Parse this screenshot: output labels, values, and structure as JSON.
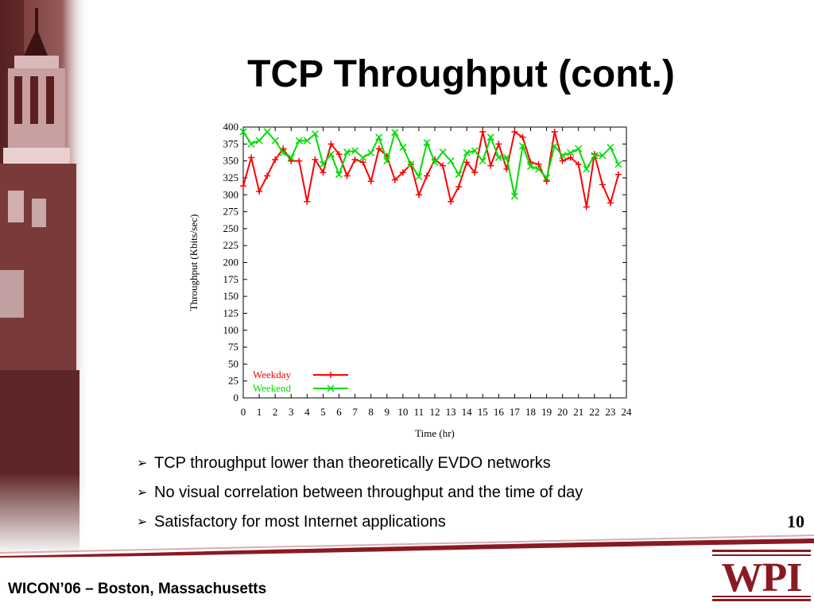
{
  "slide": {
    "title": "TCP Throughput (cont.)",
    "page_number": "10",
    "footer": "WICON’06 – Boston, Massachusetts",
    "logo_text": "WPI",
    "bullets": [
      "TCP throughput lower than theoretically EVDO networks",
      "No visual correlation between throughput and the time of day",
      "Satisfactory for most Internet applications"
    ],
    "colors": {
      "accent": "#8a1a22",
      "photo_tint": "#7a3a3a"
    }
  },
  "chart_data": {
    "type": "line",
    "xlabel": "Time (hr)",
    "ylabel": "Throughput (Kbits/sec)",
    "xlim": [
      0,
      24
    ],
    "ylim": [
      0,
      400
    ],
    "xticks": [
      0,
      1,
      2,
      3,
      4,
      5,
      6,
      7,
      8,
      9,
      10,
      11,
      12,
      13,
      14,
      15,
      16,
      17,
      18,
      19,
      20,
      21,
      22,
      23,
      24
    ],
    "yticks": [
      0,
      25,
      50,
      75,
      100,
      125,
      150,
      175,
      200,
      225,
      250,
      275,
      300,
      325,
      350,
      375,
      400
    ],
    "legend_position": "bottom-left",
    "series": [
      {
        "name": "Weekday",
        "color": "#ff0000",
        "marker": "plus",
        "x": [
          0,
          0.5,
          1,
          1.5,
          2,
          2.5,
          3,
          3.5,
          4,
          4.5,
          5,
          5.5,
          6,
          6.5,
          7,
          7.5,
          8,
          8.5,
          9,
          9.5,
          10,
          10.5,
          11,
          11.5,
          12,
          12.5,
          13,
          13.5,
          14,
          14.5,
          15,
          15.5,
          16,
          16.5,
          17,
          17.5,
          18,
          18.5,
          19,
          19.5,
          20,
          20.5,
          21,
          21.5,
          22,
          22.5,
          23,
          23.5
        ],
        "values": [
          313,
          355,
          305,
          328,
          352,
          368,
          350,
          350,
          290,
          352,
          333,
          375,
          360,
          328,
          352,
          348,
          320,
          368,
          357,
          322,
          333,
          345,
          300,
          328,
          352,
          343,
          290,
          312,
          348,
          333,
          393,
          343,
          375,
          338,
          393,
          385,
          348,
          345,
          320,
          393,
          350,
          355,
          345,
          282,
          360,
          315,
          288,
          330
        ]
      },
      {
        "name": "Weekend",
        "color": "#00dd00",
        "marker": "cross",
        "x": [
          0,
          0.5,
          1,
          1.5,
          2,
          2.5,
          3,
          3.5,
          4,
          4.5,
          5,
          5.5,
          6,
          6.5,
          7,
          7.5,
          8,
          8.5,
          9,
          9.5,
          10,
          10.5,
          11,
          11.5,
          12,
          12.5,
          13,
          13.5,
          14,
          14.5,
          15,
          15.5,
          16,
          16.5,
          17,
          17.5,
          18,
          18.5,
          19,
          19.5,
          20,
          20.5,
          21,
          21.5,
          22,
          22.5,
          23,
          23.5
        ],
        "values": [
          393,
          375,
          380,
          393,
          380,
          362,
          355,
          380,
          380,
          390,
          345,
          360,
          330,
          363,
          365,
          355,
          362,
          385,
          350,
          392,
          370,
          345,
          327,
          377,
          348,
          363,
          350,
          330,
          362,
          365,
          350,
          385,
          355,
          355,
          298,
          372,
          342,
          338,
          325,
          372,
          358,
          362,
          368,
          338,
          358,
          358,
          370,
          345
        ]
      }
    ]
  }
}
